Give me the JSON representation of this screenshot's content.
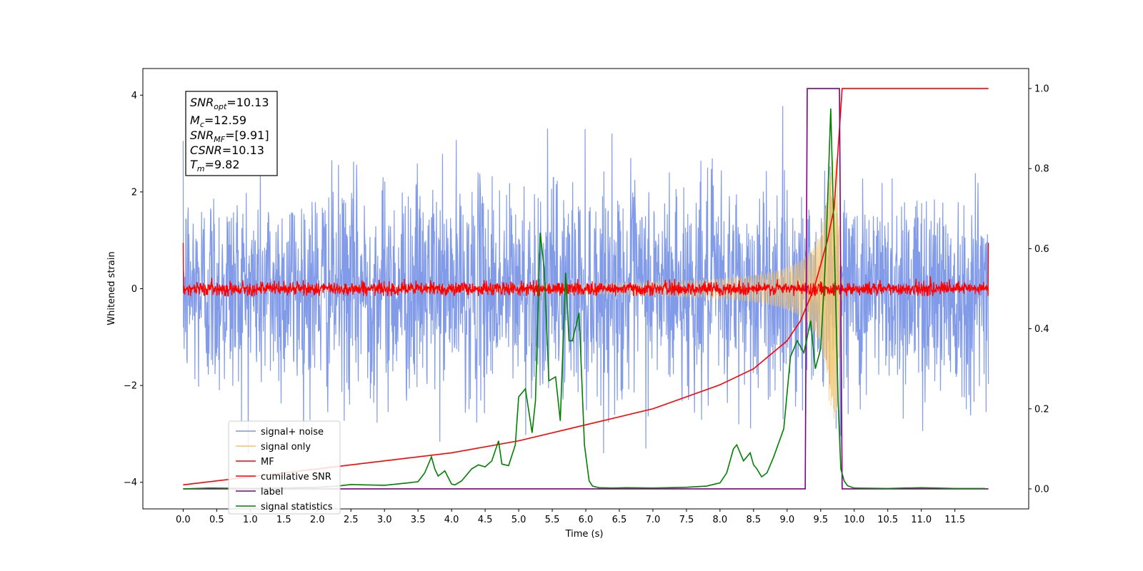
{
  "chart_data": {
    "type": "line",
    "xlabel": "Time (s)",
    "ylabel": "Whitened strain",
    "xlim": [
      -0.6,
      12.6
    ],
    "ylim": [
      -4.55,
      4.55
    ],
    "y2lim": [
      -0.05,
      1.05
    ],
    "x_ticks": [
      "0.0",
      "0.5",
      "1.0",
      "1.5",
      "2.0",
      "2.5",
      "3.0",
      "3.5",
      "4.0",
      "4.5",
      "5.0",
      "5.5",
      "6.0",
      "6.5",
      "7.0",
      "7.5",
      "8.0",
      "8.5",
      "9.0",
      "9.5",
      "10.0",
      "10.5",
      "11.0",
      "11.5"
    ],
    "y_ticks": [
      "4",
      "2",
      "0",
      "−2",
      "−4"
    ],
    "y2_ticks": [
      "1.0",
      "0.8",
      "0.6",
      "0.4",
      "0.2",
      "0.0"
    ],
    "annotation": {
      "snr_opt": {
        "base": "SNR",
        "sub": "opt",
        "value": "=10.13"
      },
      "mc": {
        "base": "M",
        "sub": "c",
        "value": "=12.59"
      },
      "snr_mf": {
        "base": "SNR",
        "sub": "MF",
        "value": "=[9.91]"
      },
      "csnr": {
        "base": "CSNR",
        "sub": "",
        "value": "=10.13"
      },
      "tm": {
        "base": "T",
        "sub": "m",
        "value": "=9.82"
      }
    },
    "legend": {
      "placement": "lower-left",
      "entries": [
        {
          "label": "signal+ noise",
          "color": "#7b96e8"
        },
        {
          "label": "signal only",
          "color": "#f3c46b"
        },
        {
          "label": "MF",
          "color": "#ff0000"
        },
        {
          "label": "cumilative SNR",
          "color": "#ff0000"
        },
        {
          "label": "label",
          "color": "#800080"
        },
        {
          "label": "signal statistics",
          "color": "#008000"
        }
      ]
    },
    "series": [
      {
        "name": "signal+ noise",
        "axis": "left",
        "color": "#7b96e8",
        "x_range": [
          0.0,
          12.0
        ],
        "mean": 0.0,
        "std": 1.1,
        "envelope": [
          -3.4,
          4.1
        ]
      },
      {
        "name": "signal only",
        "axis": "left",
        "color": "#f3c46b",
        "x_range": [
          0.0,
          9.82
        ],
        "peak_amplitude": 2.7,
        "peak_time": 9.72
      },
      {
        "name": "MF",
        "axis": "left",
        "color": "#ff0000",
        "x_range": [
          0.0,
          12.0
        ],
        "mean": 0.0,
        "envelope": [
          -0.15,
          0.35
        ]
      },
      {
        "name": "cumilative SNR",
        "axis": "right",
        "color": "#ff0000",
        "x": [
          0.0,
          1.0,
          2.0,
          3.0,
          4.0,
          5.0,
          6.0,
          6.5,
          7.0,
          7.5,
          8.0,
          8.5,
          9.0,
          9.2,
          9.4,
          9.6,
          9.7,
          9.82,
          10.0,
          11.0,
          12.0
        ],
        "y": [
          0.01,
          0.03,
          0.05,
          0.07,
          0.09,
          0.12,
          0.16,
          0.18,
          0.2,
          0.23,
          0.26,
          0.3,
          0.37,
          0.42,
          0.5,
          0.62,
          0.7,
          1.0,
          1.0,
          1.0,
          1.0
        ]
      },
      {
        "name": "label",
        "axis": "right",
        "color": "#800080",
        "x": [
          0.0,
          9.27,
          9.3,
          9.78,
          9.82,
          12.0
        ],
        "y": [
          0.0,
          0.0,
          1.0,
          1.0,
          0.0,
          0.0
        ]
      },
      {
        "name": "signal statistics",
        "axis": "right",
        "color": "#008000",
        "x": [
          0.0,
          0.4,
          1.0,
          1.5,
          2.0,
          2.3,
          2.5,
          2.7,
          3.0,
          3.3,
          3.5,
          3.6,
          3.7,
          3.75,
          3.8,
          3.9,
          4.0,
          4.05,
          4.15,
          4.3,
          4.4,
          4.5,
          4.6,
          4.7,
          4.75,
          4.85,
          4.95,
          5.0,
          5.1,
          5.2,
          5.25,
          5.32,
          5.38,
          5.45,
          5.55,
          5.62,
          5.7,
          5.75,
          5.8,
          5.9,
          5.98,
          6.05,
          6.1,
          6.2,
          6.4,
          6.6,
          7.0,
          7.5,
          7.8,
          8.0,
          8.1,
          8.2,
          8.25,
          8.35,
          8.45,
          8.5,
          8.55,
          8.62,
          8.7,
          8.8,
          8.95,
          9.05,
          9.15,
          9.25,
          9.3,
          9.35,
          9.42,
          9.5,
          9.58,
          9.65,
          9.72,
          9.76,
          9.8,
          9.85,
          9.9,
          10.0,
          10.5,
          11.0,
          11.5,
          11.95
        ],
        "y": [
          0.0,
          0.002,
          0.001,
          0.002,
          0.004,
          0.007,
          0.011,
          0.01,
          0.009,
          0.014,
          0.018,
          0.04,
          0.08,
          0.05,
          0.032,
          0.045,
          0.012,
          0.01,
          0.02,
          0.05,
          0.06,
          0.055,
          0.07,
          0.12,
          0.062,
          0.058,
          0.11,
          0.23,
          0.25,
          0.14,
          0.22,
          0.64,
          0.55,
          0.27,
          0.28,
          0.17,
          0.54,
          0.37,
          0.37,
          0.44,
          0.11,
          0.02,
          0.007,
          0.003,
          0.002,
          0.003,
          0.002,
          0.004,
          0.007,
          0.015,
          0.04,
          0.1,
          0.11,
          0.07,
          0.09,
          0.06,
          0.05,
          0.03,
          0.04,
          0.08,
          0.15,
          0.33,
          0.37,
          0.34,
          0.38,
          0.42,
          0.3,
          0.35,
          0.6,
          0.95,
          0.5,
          0.22,
          0.05,
          0.02,
          0.008,
          0.002,
          0.001,
          0.003,
          0.001,
          0.001
        ]
      }
    ]
  }
}
